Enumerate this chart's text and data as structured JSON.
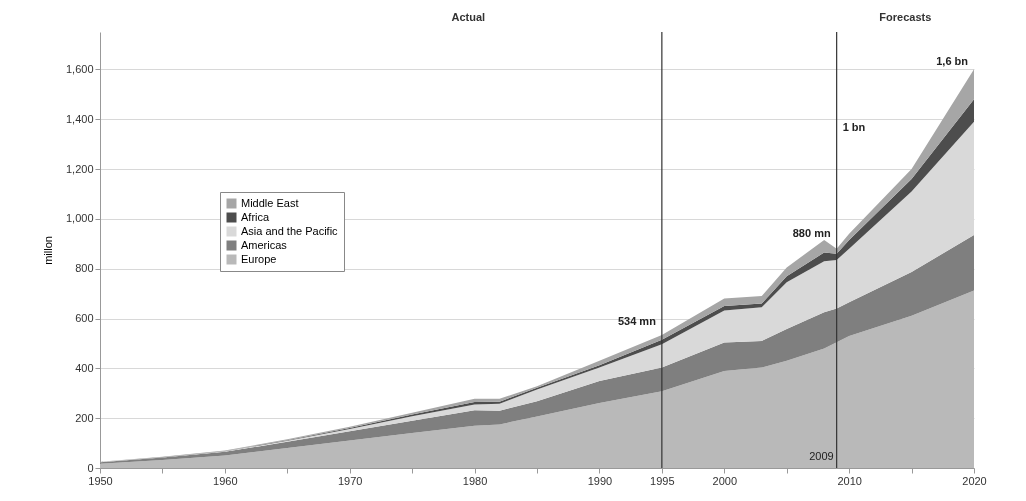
{
  "chart_data": {
    "type": "area",
    "stacked": true,
    "ylabel": "millon",
    "x": [
      1950,
      1955,
      1960,
      1965,
      1970,
      1975,
      1980,
      1982,
      1985,
      1990,
      1995,
      2000,
      2003,
      2005,
      2008,
      2009,
      2010,
      2015,
      2020
    ],
    "series": [
      {
        "name": "Europe",
        "color": "#b9b9b9",
        "values": [
          17,
          32,
          50,
          80,
          110,
          140,
          170,
          175,
          207,
          261,
          308,
          389,
          403,
          430,
          480,
          505,
          530,
          611,
          712
        ]
      },
      {
        "name": "Americas",
        "color": "#7f7f7f",
        "values": [
          6,
          10,
          15,
          25,
          38,
          50,
          62,
          55,
          61,
          88,
          95,
          115,
          107,
          128,
          145,
          135,
          135,
          176,
          223
        ]
      },
      {
        "name": "Asia and the Pacific",
        "color": "#d9d9d9",
        "values": [
          1,
          1,
          2,
          4,
          9,
          18,
          23,
          28,
          47,
          54,
          94,
          128,
          135,
          188,
          205,
          195,
          215,
          323,
          455
        ]
      },
      {
        "name": "Africa",
        "color": "#4d4d4d",
        "values": [
          0,
          1,
          1,
          2,
          4,
          7,
          10,
          8,
          7,
          9,
          18,
          18,
          15,
          24,
          35,
          25,
          35,
          50,
          90
        ]
      },
      {
        "name": "Middle East",
        "color": "#a6a6a6",
        "values": [
          1,
          1,
          2,
          4,
          5,
          7,
          13,
          12,
          6,
          18,
          19,
          30,
          30,
          35,
          50,
          20,
          25,
          40,
          120
        ]
      }
    ],
    "xlim": [
      1950,
      2020
    ],
    "xticks": [
      1950,
      {
        "value": 1955,
        "label": null
      },
      1960,
      {
        "value": 1965,
        "label": null
      },
      1970,
      {
        "value": 1975,
        "label": null
      },
      1980,
      {
        "value": 1985,
        "label": null
      },
      1990,
      1995,
      2000,
      {
        "value": 2005,
        "label": null
      },
      2010,
      {
        "value": 2015,
        "label": null
      },
      2020
    ],
    "ylim": [
      0,
      1750
    ],
    "yticks": [
      0,
      200,
      400,
      600,
      800,
      {
        "value": 1000,
        "label": "1,000"
      },
      {
        "value": 1200,
        "label": "1,200"
      },
      {
        "value": 1400,
        "label": "1,400"
      },
      {
        "value": 1600,
        "label": "1,600"
      }
    ],
    "grid": "y",
    "legend": "top left",
    "ref_lines": [
      {
        "axis": "x",
        "value": 1995,
        "color": "#333333"
      },
      {
        "axis": "x",
        "value": 2009,
        "color": "#333333",
        "label": "2009"
      }
    ],
    "annotations": [
      "Actual",
      "Forecasts",
      {
        "text": "534 mn",
        "x": 1995,
        "y": 534
      },
      {
        "text": "880 mn",
        "x": 2009,
        "y": 880
      },
      "1 bn",
      {
        "text": "1,6 bn",
        "x": 2020,
        "y": 1600
      }
    ]
  }
}
